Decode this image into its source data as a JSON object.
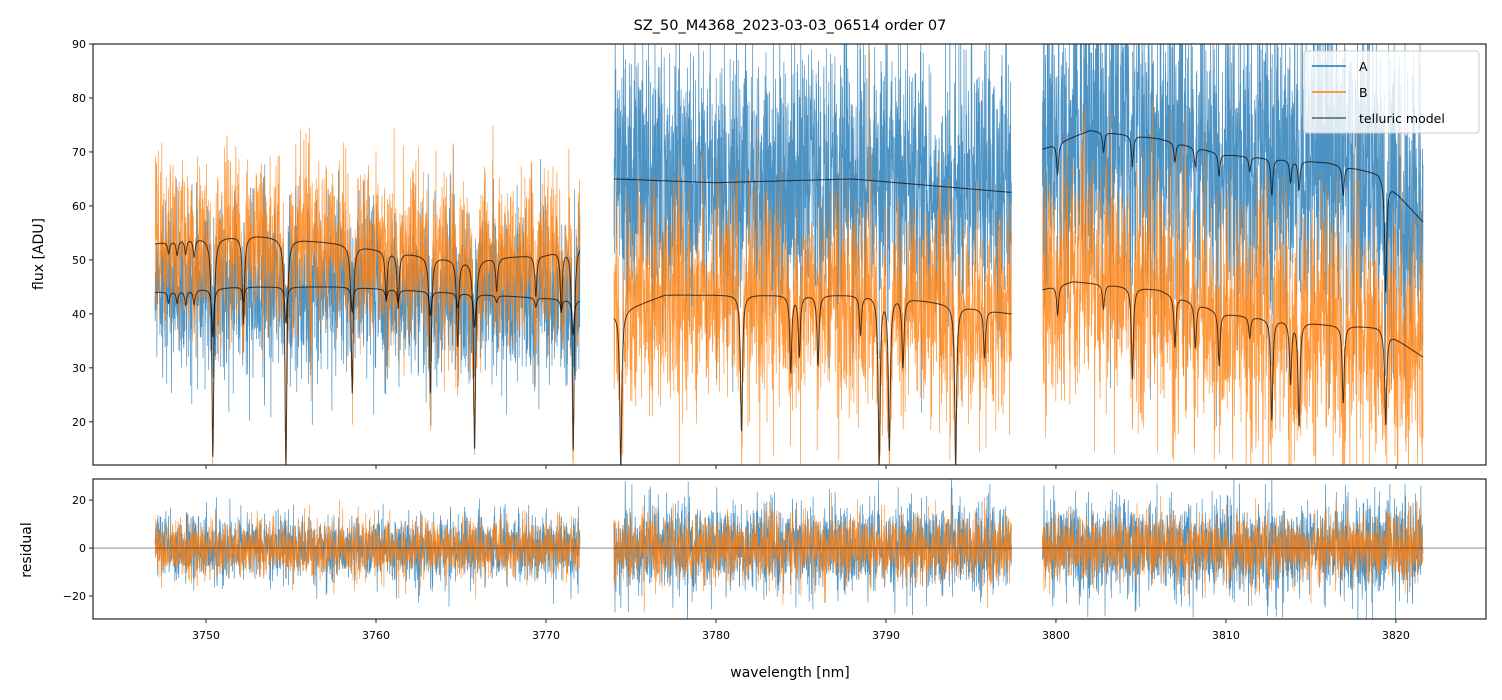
{
  "chart_data": [
    {
      "type": "line",
      "title": "SZ_50_M4368_2023-03-03_06514  order 07",
      "xlabel": "",
      "ylabel": "flux [ADU]",
      "xlim": [
        3743.35,
        3825.3
      ],
      "ylim": [
        12,
        90
      ],
      "yticks": [
        "20",
        "30",
        "40",
        "50",
        "60",
        "70",
        "80",
        "90"
      ],
      "grid": false,
      "legend": {
        "placement": "upper-right",
        "entries": [
          {
            "label": "A",
            "color": "#1f77b4"
          },
          {
            "label": "B",
            "color": "#ff7f0e"
          },
          {
            "label": "telluric model",
            "color": "#3a3a3a"
          }
        ]
      },
      "segments_nm": [
        [
          3747.0,
          3772.0
        ],
        [
          3774.0,
          3797.4
        ],
        [
          3799.2,
          3821.6
        ]
      ],
      "telluric_model": {
        "A": [
          {
            "continuum": [
              [
                3747,
                44
              ],
              [
                3752,
                45
              ],
              [
                3758,
                45
              ],
              [
                3764,
                44
              ],
              [
                3772,
                42.5
              ]
            ],
            "lines": [
              [
                3747.8,
                0.05
              ],
              [
                3748.3,
                0.05
              ],
              [
                3748.8,
                0.06
              ],
              [
                3749.3,
                0.06
              ],
              [
                3750.4,
                0.2
              ],
              [
                3752.2,
                0.06
              ],
              [
                3754.7,
                0.15
              ],
              [
                3758.6,
                0.1
              ],
              [
                3760.6,
                0.04
              ],
              [
                3761.3,
                0.05
              ],
              [
                3763.2,
                0.1
              ],
              [
                3764.8,
                0.06
              ],
              [
                3765.8,
                0.14
              ],
              [
                3767.1,
                0.03
              ],
              [
                3769.4,
                0.04
              ],
              [
                3770.9,
                0.05
              ],
              [
                3771.6,
                0.15
              ]
            ]
          },
          {
            "continuum": [
              [
                3774,
                65
              ],
              [
                3780,
                64.3
              ],
              [
                3788,
                65
              ],
              [
                3797.4,
                62.5
              ]
            ],
            "lines": []
          },
          {
            "continuum": [
              [
                3799.2,
                70.5
              ],
              [
                3802,
                74
              ],
              [
                3806,
                72.5
              ],
              [
                3810,
                69.5
              ],
              [
                3816,
                68
              ],
              [
                3819,
                66
              ],
              [
                3821.6,
                57
              ]
            ],
            "lines": [
              [
                3800.1,
                0.08
              ],
              [
                3802.8,
                0.05
              ],
              [
                3804.5,
                0.08
              ],
              [
                3807.0,
                0.05
              ],
              [
                3808.2,
                0.05
              ],
              [
                3809.6,
                0.06
              ],
              [
                3811.4,
                0.04
              ],
              [
                3812.7,
                0.1
              ],
              [
                3813.8,
                0.06
              ],
              [
                3814.3,
                0.08
              ],
              [
                3816.9,
                0.08
              ],
              [
                3819.4,
                0.32
              ]
            ]
          }
        ],
        "B": [
          {
            "continuum": [
              [
                3747,
                53
              ],
              [
                3749,
                54
              ],
              [
                3753,
                54.5
              ],
              [
                3758,
                53
              ],
              [
                3761,
                51.5
              ],
              [
                3765,
                50
              ],
              [
                3770,
                51
              ],
              [
                3772,
                53
              ]
            ],
            "lines": [
              [
                3747.8,
                0.04
              ],
              [
                3748.3,
                0.05
              ],
              [
                3748.8,
                0.05
              ],
              [
                3749.3,
                0.06
              ],
              [
                3750.4,
                0.75
              ],
              [
                3752.2,
                0.3
              ],
              [
                3754.7,
                0.78
              ],
              [
                3758.6,
                0.52
              ],
              [
                3760.6,
                0.18
              ],
              [
                3761.3,
                0.2
              ],
              [
                3763.2,
                0.5
              ],
              [
                3764.8,
                0.32
              ],
              [
                3765.8,
                0.7
              ],
              [
                3767.1,
                0.12
              ],
              [
                3769.4,
                0.15
              ],
              [
                3770.9,
                0.22
              ],
              [
                3771.6,
                0.72
              ]
            ]
          },
          {
            "continuum": [
              [
                3774,
                40
              ],
              [
                3777,
                43.5
              ],
              [
                3790,
                43.5
              ],
              [
                3797.4,
                40
              ]
            ],
            "lines": [
              [
                3774.4,
                0.72
              ],
              [
                3781.5,
                0.58
              ],
              [
                3784.4,
                0.33
              ],
              [
                3784.9,
                0.26
              ],
              [
                3786.0,
                0.3
              ],
              [
                3788.5,
                0.17
              ],
              [
                3789.6,
                0.72
              ],
              [
                3790.2,
                0.66
              ],
              [
                3791.0,
                0.3
              ],
              [
                3794.1,
                0.72
              ],
              [
                3795.8,
                0.22
              ]
            ]
          },
          {
            "continuum": [
              [
                3799.2,
                44.5
              ],
              [
                3801,
                46
              ],
              [
                3806,
                44.5
              ],
              [
                3810,
                40
              ],
              [
                3816,
                38
              ],
              [
                3819,
                37.5
              ],
              [
                3821.6,
                32
              ]
            ],
            "lines": [
              [
                3800.1,
                0.12
              ],
              [
                3802.8,
                0.1
              ],
              [
                3804.5,
                0.38
              ],
              [
                3807.0,
                0.22
              ],
              [
                3808.2,
                0.2
              ],
              [
                3809.6,
                0.25
              ],
              [
                3811.4,
                0.1
              ],
              [
                3812.7,
                0.48
              ],
              [
                3813.8,
                0.3
              ],
              [
                3814.3,
                0.5
              ],
              [
                3816.9,
                0.38
              ],
              [
                3819.4,
                0.47
              ]
            ]
          }
        ]
      }
    },
    {
      "type": "line",
      "xlabel": "wavelength [nm]",
      "ylabel": "residual",
      "xlim": [
        3743.35,
        3825.3
      ],
      "ylim": [
        -29.6,
        28.8
      ],
      "xticks": [
        "3750",
        "3760",
        "3770",
        "3780",
        "3790",
        "3800",
        "3810",
        "3820"
      ],
      "yticks": [
        "−20",
        "0",
        "20"
      ],
      "zero_line": true,
      "series": [
        {
          "label": "A",
          "color": "#1f77b4"
        },
        {
          "label": "B",
          "color": "#ff7f0e"
        }
      ]
    }
  ]
}
